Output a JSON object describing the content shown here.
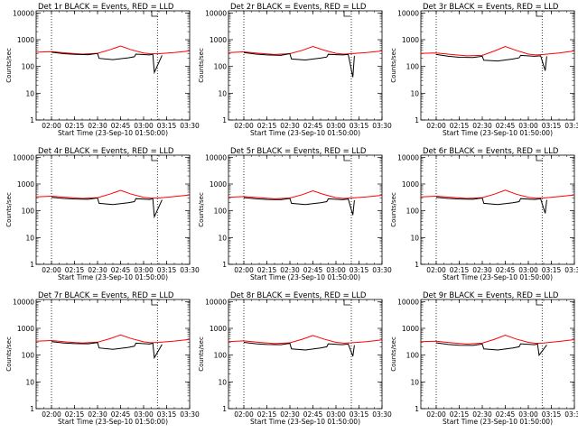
{
  "panel_layout": {
    "cols": 3,
    "rows": 3
  },
  "chart_data": [
    {
      "type": "line",
      "title": "Det 1r BLACK = Events, RED = LLD",
      "xlabel": "Start Time (23-Sep-10 01:50:00)",
      "ylabel": "Counts/sec",
      "xlim": [
        "01:50",
        "03:30"
      ],
      "ylim": [
        1,
        12000
      ],
      "y_scale": "log",
      "x_ticks": [
        "02:00",
        "02:15",
        "02:30",
        "02:45",
        "03:00",
        "03:15",
        "03:30"
      ],
      "y_ticks": [
        "1",
        "10",
        "100",
        "1000",
        "10000"
      ],
      "vlines": [
        "02:00",
        "03:09"
      ],
      "series": [
        {
          "name": "LLD",
          "color": "#ff0000",
          "x": [
            "01:50",
            "02:00",
            "02:10",
            "02:20",
            "02:30",
            "02:38",
            "02:45",
            "02:52",
            "03:00",
            "03:05",
            "03:10",
            "03:20",
            "03:30"
          ],
          "y": [
            340,
            360,
            320,
            290,
            310,
            420,
            580,
            420,
            320,
            295,
            300,
            330,
            380
          ]
        },
        {
          "name": "Events",
          "color": "#000000",
          "x": [
            "02:00",
            "02:08",
            "02:15",
            "02:24",
            "02:30",
            "02:31",
            "02:40",
            "02:50",
            "02:54",
            "02:55",
            "03:04",
            "03:06",
            "03:07",
            "03:12"
          ],
          "y": [
            340,
            300,
            285,
            275,
            305,
            200,
            180,
            210,
            230,
            290,
            270,
            290,
            60,
            260
          ]
        }
      ]
    },
    {
      "type": "line",
      "title": "Det 2r BLACK = Events, RED = LLD",
      "xlabel": "Start Time (23-Sep-10 01:50:00)",
      "ylabel": "Counts/sec",
      "xlim": [
        "01:50",
        "03:30"
      ],
      "ylim": [
        1,
        12000
      ],
      "y_scale": "log",
      "x_ticks": [
        "02:00",
        "02:15",
        "02:30",
        "02:45",
        "03:00",
        "03:15",
        "03:30"
      ],
      "y_ticks": [
        "1",
        "10",
        "100",
        "1000",
        "10000"
      ],
      "vlines": [
        "02:00",
        "03:10"
      ],
      "series": [
        {
          "name": "LLD",
          "color": "#ff0000",
          "x": [
            "01:50",
            "02:00",
            "02:10",
            "02:20",
            "02:30",
            "02:38",
            "02:45",
            "02:52",
            "03:00",
            "03:05",
            "03:10",
            "03:20",
            "03:30"
          ],
          "y": [
            330,
            350,
            310,
            280,
            300,
            400,
            560,
            410,
            310,
            290,
            300,
            330,
            380
          ]
        },
        {
          "name": "Events",
          "color": "#000000",
          "x": [
            "02:00",
            "02:08",
            "02:15",
            "02:24",
            "02:30",
            "02:31",
            "02:40",
            "02:50",
            "02:54",
            "02:55",
            "03:04",
            "03:08",
            "03:11",
            "03:12"
          ],
          "y": [
            330,
            290,
            270,
            260,
            300,
            190,
            175,
            205,
            225,
            285,
            270,
            280,
            40,
            250
          ]
        }
      ]
    },
    {
      "type": "line",
      "title": "Det 3r BLACK = Events, RED = LLD",
      "xlabel": "Start Time (23-Sep-10 01:50:00)",
      "ylabel": "Counts/sec",
      "xlim": [
        "01:50",
        "03:30"
      ],
      "ylim": [
        1,
        12000
      ],
      "y_scale": "log",
      "x_ticks": [
        "02:00",
        "02:15",
        "02:30",
        "02:45",
        "03:00",
        "03:15",
        "03:30"
      ],
      "y_ticks": [
        "1",
        "10",
        "100",
        "1000",
        "10000"
      ],
      "vlines": [
        "02:00",
        "03:09"
      ],
      "series": [
        {
          "name": "LLD",
          "color": "#ff0000",
          "x": [
            "01:50",
            "02:00",
            "02:10",
            "02:20",
            "02:30",
            "02:38",
            "02:45",
            "02:52",
            "03:00",
            "03:05",
            "03:10",
            "03:20",
            "03:30"
          ],
          "y": [
            310,
            320,
            280,
            250,
            260,
            380,
            560,
            400,
            290,
            270,
            280,
            320,
            380
          ]
        },
        {
          "name": "Events",
          "color": "#000000",
          "x": [
            "02:00",
            "02:08",
            "02:15",
            "02:24",
            "02:30",
            "02:31",
            "02:40",
            "02:50",
            "02:54",
            "02:55",
            "03:04",
            "03:08",
            "03:11",
            "03:12"
          ],
          "y": [
            280,
            240,
            220,
            215,
            240,
            170,
            160,
            190,
            210,
            260,
            240,
            250,
            70,
            240
          ]
        }
      ]
    },
    {
      "type": "line",
      "title": "Det 4r BLACK = Events, RED = LLD",
      "xlabel": "Start Time (23-Sep-10 01:50:00)",
      "ylabel": "Counts/sec",
      "xlim": [
        "01:50",
        "03:30"
      ],
      "ylim": [
        1,
        12000
      ],
      "y_scale": "log",
      "x_ticks": [
        "02:00",
        "02:15",
        "02:30",
        "02:45",
        "03:00",
        "03:15",
        "03:30"
      ],
      "y_ticks": [
        "1",
        "10",
        "100",
        "1000",
        "10000"
      ],
      "vlines": [
        "02:00",
        "03:09"
      ],
      "series": [
        {
          "name": "LLD",
          "color": "#ff0000",
          "x": [
            "01:50",
            "02:00",
            "02:10",
            "02:20",
            "02:30",
            "02:38",
            "02:45",
            "02:52",
            "03:00",
            "03:05",
            "03:10",
            "03:20",
            "03:30"
          ],
          "y": [
            330,
            350,
            320,
            290,
            310,
            420,
            580,
            420,
            320,
            295,
            300,
            340,
            390
          ]
        },
        {
          "name": "Events",
          "color": "#000000",
          "x": [
            "02:00",
            "02:08",
            "02:15",
            "02:24",
            "02:30",
            "02:31",
            "02:40",
            "02:50",
            "02:54",
            "02:55",
            "03:04",
            "03:06",
            "03:07",
            "03:12"
          ],
          "y": [
            320,
            290,
            275,
            270,
            300,
            190,
            170,
            200,
            220,
            285,
            265,
            285,
            60,
            255
          ]
        }
      ]
    },
    {
      "type": "line",
      "title": "Det 5r BLACK = Events, RED = LLD",
      "xlabel": "Start Time (23-Sep-10 01:50:00)",
      "ylabel": "Counts/sec",
      "xlim": [
        "01:50",
        "03:30"
      ],
      "ylim": [
        1,
        12000
      ],
      "y_scale": "log",
      "x_ticks": [
        "02:00",
        "02:15",
        "02:30",
        "02:45",
        "03:00",
        "03:15",
        "03:30"
      ],
      "y_ticks": [
        "1",
        "10",
        "100",
        "1000",
        "10000"
      ],
      "vlines": [
        "02:00",
        "03:10"
      ],
      "series": [
        {
          "name": "LLD",
          "color": "#ff0000",
          "x": [
            "01:50",
            "02:00",
            "02:10",
            "02:20",
            "02:30",
            "02:38",
            "02:45",
            "02:52",
            "03:00",
            "03:05",
            "03:10",
            "03:20",
            "03:30"
          ],
          "y": [
            320,
            340,
            310,
            280,
            300,
            400,
            560,
            410,
            310,
            290,
            300,
            330,
            380
          ]
        },
        {
          "name": "Events",
          "color": "#000000",
          "x": [
            "02:00",
            "02:08",
            "02:15",
            "02:24",
            "02:30",
            "02:31",
            "02:40",
            "02:50",
            "02:54",
            "02:55",
            "03:04",
            "03:08",
            "03:11",
            "03:12"
          ],
          "y": [
            310,
            280,
            265,
            260,
            290,
            190,
            170,
            200,
            220,
            280,
            260,
            275,
            70,
            245
          ]
        }
      ]
    },
    {
      "type": "line",
      "title": "Det 6r BLACK = Events, RED = LLD",
      "xlabel": "Start Time (23-Sep-10 01:50:00)",
      "ylabel": "Counts/sec",
      "xlim": [
        "01:50",
        "03:30"
      ],
      "ylim": [
        1,
        12000
      ],
      "y_scale": "log",
      "x_ticks": [
        "02:00",
        "02:15",
        "02:30",
        "02:45",
        "03:00",
        "03:15",
        "03:30"
      ],
      "y_ticks": [
        "1",
        "10",
        "100",
        "1000",
        "10000"
      ],
      "vlines": [
        "02:00",
        "03:09"
      ],
      "series": [
        {
          "name": "LLD",
          "color": "#ff0000",
          "x": [
            "01:50",
            "02:00",
            "02:10",
            "02:20",
            "02:30",
            "02:38",
            "02:45",
            "02:52",
            "03:00",
            "03:05",
            "03:10",
            "03:20",
            "03:30"
          ],
          "y": [
            330,
            350,
            320,
            290,
            310,
            420,
            590,
            420,
            320,
            295,
            300,
            340,
            390
          ]
        },
        {
          "name": "Events",
          "color": "#000000",
          "x": [
            "02:00",
            "02:08",
            "02:15",
            "02:24",
            "02:30",
            "02:31",
            "02:40",
            "02:50",
            "02:54",
            "02:55",
            "03:04",
            "03:08",
            "03:11",
            "03:12"
          ],
          "y": [
            320,
            290,
            275,
            270,
            300,
            190,
            170,
            200,
            220,
            285,
            265,
            280,
            80,
            255
          ]
        }
      ]
    },
    {
      "type": "line",
      "title": "Det 7r BLACK = Events, RED = LLD",
      "xlabel": "Start Time (23-Sep-10 01:50:00)",
      "ylabel": "Counts/sec",
      "xlim": [
        "01:50",
        "03:30"
      ],
      "ylim": [
        1,
        12000
      ],
      "y_scale": "log",
      "x_ticks": [
        "02:00",
        "02:15",
        "02:30",
        "02:45",
        "03:00",
        "03:15",
        "03:30"
      ],
      "y_ticks": [
        "1",
        "10",
        "100",
        "1000",
        "10000"
      ],
      "vlines": [
        "02:00",
        "03:09"
      ],
      "series": [
        {
          "name": "LLD",
          "color": "#ff0000",
          "x": [
            "01:50",
            "02:00",
            "02:10",
            "02:20",
            "02:30",
            "02:38",
            "02:45",
            "02:52",
            "03:00",
            "03:05",
            "03:10",
            "03:20",
            "03:30"
          ],
          "y": [
            330,
            350,
            310,
            285,
            305,
            410,
            570,
            415,
            315,
            290,
            300,
            335,
            385
          ]
        },
        {
          "name": "Events",
          "color": "#000000",
          "x": [
            "02:00",
            "02:08",
            "02:15",
            "02:24",
            "02:30",
            "02:31",
            "02:40",
            "02:50",
            "02:54",
            "02:55",
            "03:04",
            "03:06",
            "03:07",
            "03:12"
          ],
          "y": [
            320,
            285,
            270,
            265,
            295,
            185,
            165,
            195,
            215,
            280,
            260,
            280,
            80,
            250
          ]
        }
      ]
    },
    {
      "type": "line",
      "title": "Det 8r BLACK = Events, RED = LLD",
      "xlabel": "Start Time (23-Sep-10 01:50:00)",
      "ylabel": "Counts/sec",
      "xlim": [
        "01:50",
        "03:30"
      ],
      "ylim": [
        1,
        12000
      ],
      "y_scale": "log",
      "x_ticks": [
        "02:00",
        "02:15",
        "02:30",
        "02:45",
        "03:00",
        "03:15",
        "03:30"
      ],
      "y_ticks": [
        "1",
        "10",
        "100",
        "1000",
        "10000"
      ],
      "vlines": [
        "02:00",
        "03:10"
      ],
      "series": [
        {
          "name": "LLD",
          "color": "#ff0000",
          "x": [
            "01:50",
            "02:00",
            "02:10",
            "02:20",
            "02:30",
            "02:38",
            "02:45",
            "02:52",
            "03:00",
            "03:05",
            "03:10",
            "03:20",
            "03:30"
          ],
          "y": [
            320,
            340,
            300,
            270,
            290,
            390,
            540,
            400,
            300,
            280,
            290,
            320,
            370
          ]
        },
        {
          "name": "Events",
          "color": "#000000",
          "x": [
            "02:00",
            "02:08",
            "02:15",
            "02:24",
            "02:30",
            "02:31",
            "02:40",
            "02:50",
            "02:54",
            "02:55",
            "03:04",
            "03:08",
            "03:11",
            "03:12"
          ],
          "y": [
            300,
            265,
            250,
            245,
            275,
            170,
            155,
            185,
            205,
            265,
            245,
            260,
            90,
            235
          ]
        }
      ]
    },
    {
      "type": "line",
      "title": "Det 9r BLACK = Events, RED = LLD",
      "xlabel": "Start Time (23-Sep-10 01:50:00)",
      "ylabel": "Counts/sec",
      "xlim": [
        "01:50",
        "03:30"
      ],
      "ylim": [
        1,
        12000
      ],
      "y_scale": "log",
      "x_ticks": [
        "02:00",
        "02:15",
        "02:30",
        "02:45",
        "03:00",
        "03:15",
        "03:30"
      ],
      "y_ticks": [
        "1",
        "10",
        "100",
        "1000",
        "10000"
      ],
      "vlines": [
        "02:00",
        "03:09"
      ],
      "series": [
        {
          "name": "LLD",
          "color": "#ff0000",
          "x": [
            "01:50",
            "02:00",
            "02:10",
            "02:20",
            "02:30",
            "02:38",
            "02:45",
            "02:52",
            "03:00",
            "03:05",
            "03:10",
            "03:20",
            "03:30"
          ],
          "y": [
            320,
            330,
            290,
            260,
            280,
            390,
            560,
            400,
            300,
            275,
            285,
            325,
            380
          ]
        },
        {
          "name": "Events",
          "color": "#000000",
          "x": [
            "02:00",
            "02:08",
            "02:15",
            "02:24",
            "02:30",
            "02:31",
            "02:40",
            "02:50",
            "02:54",
            "02:55",
            "03:04",
            "03:06",
            "03:07",
            "03:12"
          ],
          "y": [
            290,
            250,
            235,
            230,
            260,
            170,
            155,
            185,
            205,
            265,
            245,
            260,
            100,
            240
          ]
        }
      ]
    }
  ]
}
